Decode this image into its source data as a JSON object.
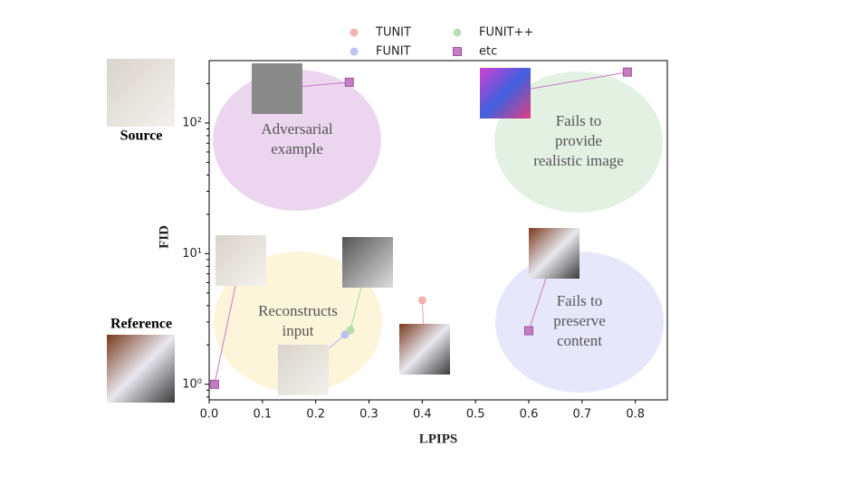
{
  "chart_data": {
    "type": "scatter",
    "x_label": "LPIPS",
    "y_label": "FID",
    "xlim": [
      0,
      0.86
    ],
    "ylim": [
      0.76,
      300
    ],
    "log_y": true,
    "xticks": [
      {
        "value": 0,
        "label": "0.0"
      },
      0.1,
      0.2,
      0.3,
      0.4,
      0.5,
      0.6,
      0.7,
      0.8
    ],
    "yticks": [
      {
        "value": 1,
        "label": "10⁰"
      },
      {
        "value": 10,
        "label": "10¹"
      },
      {
        "value": 100,
        "label": "10²"
      }
    ],
    "series": [
      {
        "name": "TUNIT",
        "color": "#f4a0a0",
        "marker": "circle",
        "x": [
          0.4
        ],
        "y": [
          4.4
        ]
      },
      {
        "name": "FUNIT",
        "color": "#b0b4f0",
        "marker": "circle",
        "x": [
          0.255
        ],
        "y": [
          2.4
        ]
      },
      {
        "name": "FUNIT++",
        "color": "#a8d8a0",
        "marker": "circle",
        "x": [
          0.265
        ],
        "y": [
          2.6
        ]
      },
      {
        "name": "etc",
        "color": "#c47cc4",
        "marker": "square",
        "x": [
          0.01,
          0.263,
          0.785,
          0.6
        ],
        "y": [
          1.0,
          205,
          245,
          2.57
        ]
      }
    ],
    "annotations": [
      {
        "lines": [
          "Adversarial",
          "example"
        ]
      },
      {
        "lines": [
          "Fails to",
          "provide",
          "realistic image"
        ]
      },
      {
        "lines": [
          "Reconstructs",
          "input"
        ]
      },
      {
        "lines": [
          "Fails to",
          "preserve",
          "content"
        ]
      }
    ],
    "side_labels": [
      "Source",
      "Reference"
    ]
  }
}
